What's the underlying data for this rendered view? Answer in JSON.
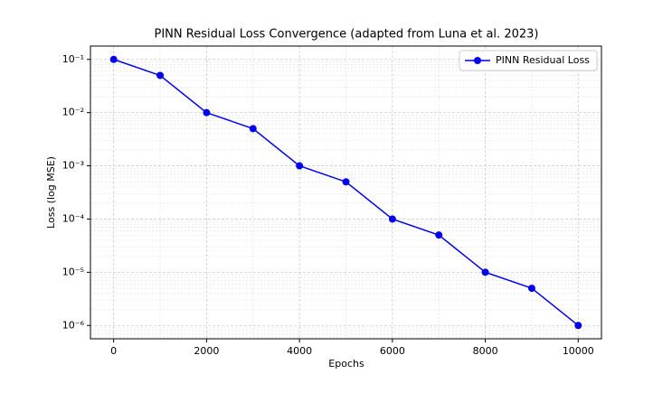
{
  "chart_data": {
    "type": "line",
    "title": "PINN Residual Loss Convergence (adapted from Luna et al. 2023)",
    "xlabel": "Epochs",
    "ylabel": "Loss (log MSE)",
    "x": [
      0,
      1000,
      2000,
      3000,
      4000,
      5000,
      6000,
      7000,
      8000,
      9000,
      10000
    ],
    "series": [
      {
        "name": "PINN Residual Loss",
        "color": "#0000ee",
        "values": [
          0.1,
          0.05,
          0.01,
          0.005,
          0.001,
          0.0005,
          0.0001,
          5e-05,
          1e-05,
          5e-06,
          1e-06
        ]
      }
    ],
    "xlim": [
      -500,
      10500
    ],
    "xticks": [
      0,
      2000,
      4000,
      6000,
      8000,
      10000
    ],
    "ylim": [
      5.62e-07,
      0.178
    ],
    "yscale": "log",
    "yticks": [
      {
        "value": 0.1,
        "label": "10⁻¹"
      },
      {
        "value": 0.01,
        "label": "10⁻²"
      },
      {
        "value": 0.001,
        "label": "10⁻³"
      },
      {
        "value": 0.0001,
        "label": "10⁻⁴"
      },
      {
        "value": 1e-05,
        "label": "10⁻⁵"
      },
      {
        "value": 1e-06,
        "label": "10⁻⁶"
      }
    ],
    "grid": true,
    "minor_grid": true,
    "legend": "upper right"
  }
}
